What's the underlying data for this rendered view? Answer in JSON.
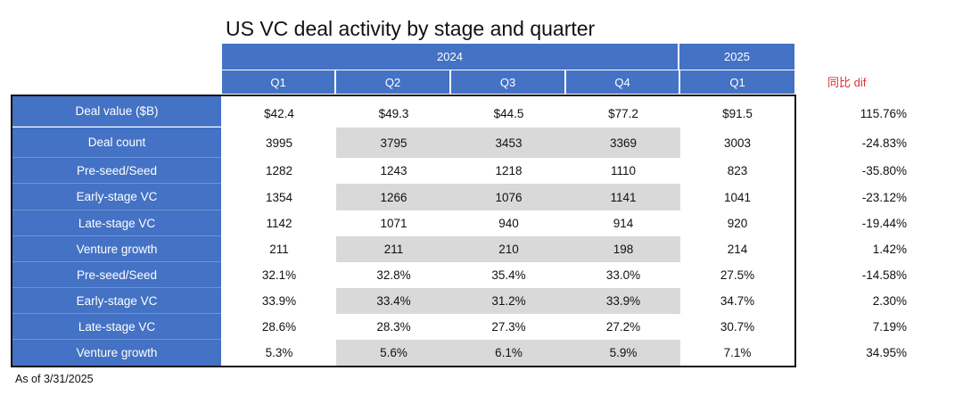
{
  "chart_data": {
    "type": "table",
    "title": "US VC deal activity by stage and quarter",
    "year_headers": [
      "2024",
      "2025"
    ],
    "quarter_headers": [
      "Q1",
      "Q2",
      "Q3",
      "Q4",
      "Q1"
    ],
    "diff_header": "同比 dif",
    "rows": [
      {
        "label": "Deal value ($B)",
        "values": [
          "$42.4",
          "$49.3",
          "$44.5",
          "$77.2",
          "$91.5"
        ],
        "diff": "115.76%"
      },
      {
        "label": "Deal count",
        "values": [
          "3995",
          "3795",
          "3453",
          "3369",
          "3003"
        ],
        "diff": "-24.83%"
      },
      {
        "label": "Pre-seed/Seed",
        "values": [
          "1282",
          "1243",
          "1218",
          "1110",
          "823"
        ],
        "diff": "-35.80%"
      },
      {
        "label": "Early-stage VC",
        "values": [
          "1354",
          "1266",
          "1076",
          "1141",
          "1041"
        ],
        "diff": "-23.12%"
      },
      {
        "label": "Late-stage VC",
        "values": [
          "1142",
          "1071",
          "940",
          "914",
          "920"
        ],
        "diff": "-19.44%"
      },
      {
        "label": "Venture growth",
        "values": [
          "211",
          "211",
          "210",
          "198",
          "214"
        ],
        "diff": "1.42%"
      },
      {
        "label": "Pre-seed/Seed",
        "values": [
          "32.1%",
          "32.8%",
          "35.4%",
          "33.0%",
          "27.5%"
        ],
        "diff": "-14.58%"
      },
      {
        "label": "Early-stage VC",
        "values": [
          "33.9%",
          "33.4%",
          "31.2%",
          "33.9%",
          "34.7%"
        ],
        "diff": "2.30%"
      },
      {
        "label": "Late-stage VC",
        "values": [
          "28.6%",
          "28.3%",
          "27.3%",
          "27.2%",
          "30.7%"
        ],
        "diff": "7.19%"
      },
      {
        "label": "Venture growth",
        "values": [
          "5.3%",
          "5.6%",
          "6.1%",
          "5.9%",
          "7.1%"
        ],
        "diff": "34.95%"
      }
    ],
    "footnote": "As of 3/31/2025"
  },
  "colors": {
    "header_blue": "#4472c4",
    "shade_gray": "#d9d9d9",
    "diff_red": "#e03030"
  }
}
